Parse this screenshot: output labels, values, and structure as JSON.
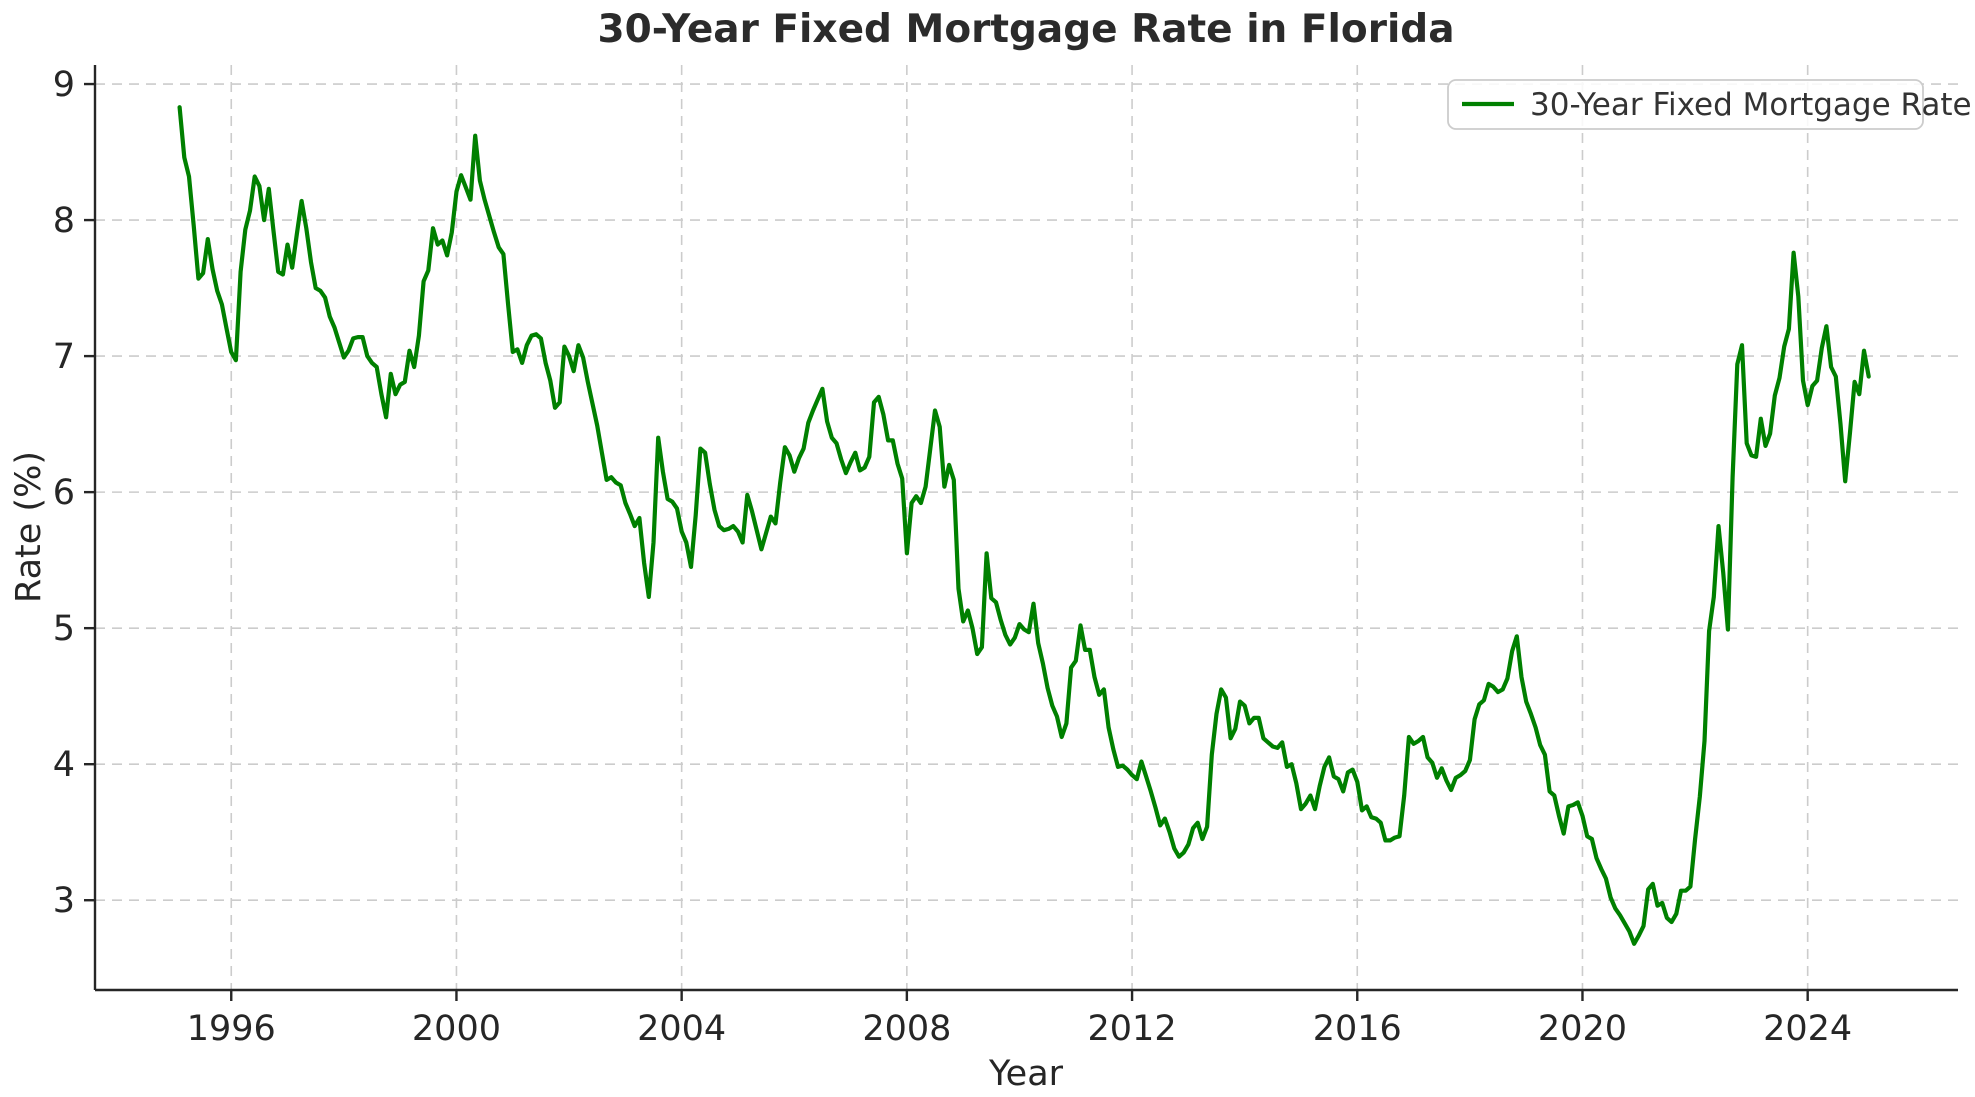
{
  "title": "30-Year Fixed Mortgage Rate in Florida",
  "chart_data": {
    "type": "line",
    "title": "30-Year Fixed Mortgage Rate in Florida",
    "xlabel": "Year",
    "ylabel": "Rate (%)",
    "legend": [
      "30-Year Fixed Mortgage Rate"
    ],
    "legend_position": "upper right",
    "grid": "dashed",
    "line_color": "#008000",
    "grid_color": "#cccccc",
    "spine_color": "#262626",
    "x_ticks": [
      1996,
      2000,
      2004,
      2008,
      2012,
      2016,
      2020,
      2024
    ],
    "y_ticks": [
      3,
      4,
      5,
      6,
      7,
      8,
      9
    ],
    "xlim": [
      1993.58,
      2026.67
    ],
    "ylim": [
      2.34,
      9.14
    ],
    "series": [
      {
        "name": "30-Year Fixed Mortgage Rate",
        "unit": "percent",
        "frequency": "monthly",
        "start_year": 1995,
        "start_month": 2,
        "values": [
          8.83,
          8.46,
          8.32,
          7.96,
          7.57,
          7.61,
          7.86,
          7.64,
          7.48,
          7.38,
          7.2,
          7.03,
          6.97,
          7.62,
          7.93,
          8.07,
          8.32,
          8.25,
          8.0,
          8.23,
          7.92,
          7.62,
          7.6,
          7.82,
          7.65,
          7.9,
          8.14,
          7.94,
          7.69,
          7.5,
          7.48,
          7.43,
          7.29,
          7.21,
          7.1,
          6.99,
          7.04,
          7.13,
          7.14,
          7.14,
          7.0,
          6.95,
          6.92,
          6.72,
          6.55,
          6.87,
          6.72,
          6.79,
          6.81,
          7.04,
          6.92,
          7.15,
          7.55,
          7.63,
          7.94,
          7.82,
          7.85,
          7.74,
          7.91,
          8.21,
          8.33,
          8.24,
          8.15,
          8.62,
          8.29,
          8.15,
          8.03,
          7.91,
          7.8,
          7.75,
          7.38,
          7.03,
          7.05,
          6.95,
          7.08,
          7.15,
          7.16,
          7.13,
          6.95,
          6.82,
          6.62,
          6.66,
          7.07,
          7.0,
          6.89,
          7.08,
          6.99,
          6.81,
          6.65,
          6.49,
          6.29,
          6.09,
          6.11,
          6.07,
          6.05,
          5.92,
          5.84,
          5.75,
          5.81,
          5.48,
          5.23,
          5.63,
          6.4,
          6.15,
          5.95,
          5.93,
          5.88,
          5.71,
          5.63,
          5.45,
          5.83,
          6.32,
          6.29,
          6.06,
          5.87,
          5.75,
          5.72,
          5.73,
          5.75,
          5.71,
          5.63,
          5.98,
          5.86,
          5.72,
          5.58,
          5.7,
          5.82,
          5.77,
          6.07,
          6.33,
          6.27,
          6.15,
          6.25,
          6.32,
          6.51,
          6.6,
          6.68,
          6.76,
          6.52,
          6.4,
          6.36,
          6.24,
          6.14,
          6.22,
          6.29,
          6.16,
          6.18,
          6.26,
          6.66,
          6.7,
          6.57,
          6.38,
          6.38,
          6.21,
          6.1,
          5.55,
          5.92,
          5.97,
          5.92,
          6.04,
          6.32,
          6.6,
          6.48,
          6.04,
          6.2,
          6.09,
          5.29,
          5.05,
          5.13,
          5.0,
          4.81,
          4.86,
          5.55,
          5.22,
          5.19,
          5.06,
          4.95,
          4.88,
          4.93,
          5.03,
          4.99,
          4.97,
          5.18,
          4.89,
          4.74,
          4.56,
          4.43,
          4.35,
          4.2,
          4.3,
          4.71,
          4.76,
          5.02,
          4.84,
          4.84,
          4.64,
          4.51,
          4.55,
          4.27,
          4.11,
          3.98,
          3.99,
          3.96,
          3.92,
          3.89,
          4.02,
          3.91,
          3.8,
          3.68,
          3.55,
          3.6,
          3.5,
          3.38,
          3.32,
          3.35,
          3.41,
          3.53,
          3.57,
          3.45,
          3.54,
          4.07,
          4.37,
          4.55,
          4.49,
          4.19,
          4.26,
          4.46,
          4.43,
          4.3,
          4.34,
          4.34,
          4.19,
          4.16,
          4.13,
          4.12,
          4.16,
          3.98,
          4.0,
          3.86,
          3.67,
          3.71,
          3.77,
          3.67,
          3.84,
          3.98,
          4.05,
          3.91,
          3.89,
          3.8,
          3.94,
          3.96,
          3.87,
          3.66,
          3.69,
          3.61,
          3.6,
          3.57,
          3.44,
          3.44,
          3.46,
          3.47,
          3.77,
          4.2,
          4.15,
          4.17,
          4.2,
          4.05,
          4.01,
          3.9,
          3.97,
          3.88,
          3.81,
          3.9,
          3.92,
          3.95,
          4.03,
          4.33,
          4.44,
          4.47,
          4.59,
          4.57,
          4.53,
          4.55,
          4.63,
          4.83,
          4.94,
          4.64,
          4.46,
          4.37,
          4.27,
          4.14,
          4.07,
          3.8,
          3.77,
          3.62,
          3.49,
          3.69,
          3.7,
          3.72,
          3.62,
          3.47,
          3.45,
          3.31,
          3.23,
          3.16,
          3.02,
          2.94,
          2.89,
          2.83,
          2.77,
          2.68,
          2.74,
          2.81,
          3.08,
          3.12,
          2.96,
          2.98,
          2.87,
          2.84,
          2.9,
          3.07,
          3.07,
          3.1,
          3.45,
          3.76,
          4.17,
          4.98,
          5.23,
          5.75,
          5.41,
          4.99,
          6.11,
          6.94,
          7.08,
          6.36,
          6.27,
          6.26,
          6.54,
          6.34,
          6.43,
          6.71,
          6.84,
          7.07,
          7.2,
          7.76,
          7.44,
          6.82,
          6.64,
          6.78,
          6.82,
          7.06,
          7.22,
          6.92,
          6.85,
          6.5,
          6.08,
          6.43,
          6.81,
          6.72,
          7.04,
          6.85
        ]
      }
    ]
  }
}
